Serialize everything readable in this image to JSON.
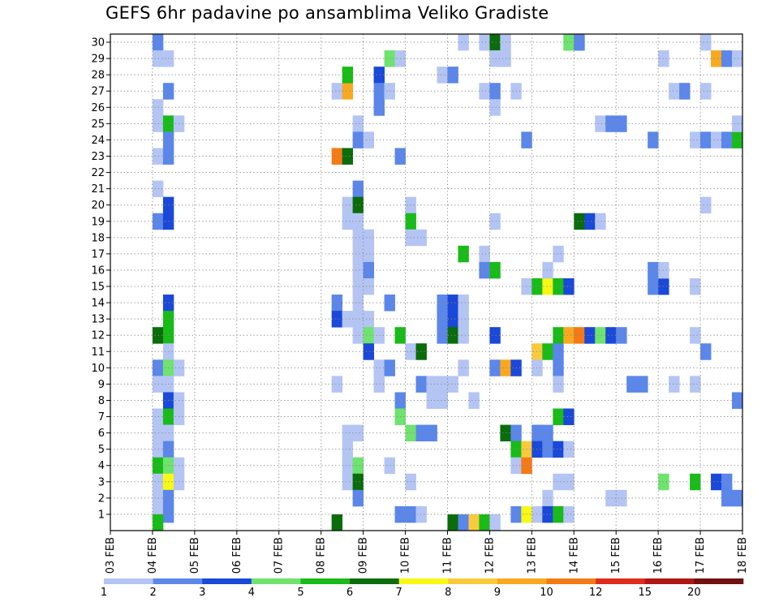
{
  "chart_data": {
    "type": "heatmap",
    "title": "GEFS 6hr padavine po ansamblima Veliko Gradiste",
    "xlabel": "",
    "ylabel": "",
    "x_tick_labels": [
      "03 FEB",
      "04 FEB",
      "05 FEB",
      "06 FEB",
      "07 FEB",
      "08 FEB",
      "09 FEB",
      "10 FEB",
      "11 FEB",
      "12 FEB",
      "13 FEB",
      "14 FEB",
      "15 FEB",
      "16 FEB",
      "17 FEB",
      "18 FEB"
    ],
    "y_tick_labels": [
      "1",
      "2",
      "3",
      "4",
      "5",
      "6",
      "7",
      "8",
      "9",
      "10",
      "11",
      "12",
      "13",
      "14",
      "15",
      "16",
      "17",
      "18",
      "19",
      "20",
      "21",
      "22",
      "23",
      "24",
      "25",
      "26",
      "27",
      "28",
      "29",
      "30"
    ],
    "x_range_days": [
      0,
      15
    ],
    "time_step_hours": 6,
    "grid": true,
    "legend_placement": "bottom",
    "colorbar": {
      "labels": [
        "1",
        "2",
        "3",
        "4",
        "5",
        "6",
        "7",
        "8",
        "9",
        "10",
        "12",
        "15",
        "20"
      ],
      "colors": [
        "#b4c5f4",
        "#5b86ea",
        "#1a48d8",
        "#6ee36e",
        "#18bb18",
        "#0a6c0a",
        "#f8f814",
        "#fbca3c",
        "#f9a820",
        "#f47a16",
        "#e02c1c",
        "#b01616",
        "#701010"
      ]
    },
    "cells": [
      {
        "t": 1.0,
        "m": 30,
        "v": 2
      },
      {
        "t": 1.0,
        "m": 29,
        "v": 1
      },
      {
        "t": 1.25,
        "m": 29,
        "v": 1
      },
      {
        "t": 1.25,
        "m": 27,
        "v": 2
      },
      {
        "t": 1.0,
        "m": 26,
        "v": 1
      },
      {
        "t": 1.0,
        "m": 25,
        "v": 1
      },
      {
        "t": 1.25,
        "m": 25,
        "v": 5
      },
      {
        "t": 1.5,
        "m": 25,
        "v": 1
      },
      {
        "t": 1.25,
        "m": 24,
        "v": 2
      },
      {
        "t": 1.0,
        "m": 23,
        "v": 1
      },
      {
        "t": 1.25,
        "m": 23,
        "v": 2
      },
      {
        "t": 1.0,
        "m": 21,
        "v": 1
      },
      {
        "t": 1.25,
        "m": 20,
        "v": 3
      },
      {
        "t": 1.0,
        "m": 19,
        "v": 2
      },
      {
        "t": 1.25,
        "m": 19,
        "v": 3
      },
      {
        "t": 1.25,
        "m": 14,
        "v": 3
      },
      {
        "t": 1.25,
        "m": 13,
        "v": 5
      },
      {
        "t": 1.0,
        "m": 12,
        "v": 6
      },
      {
        "t": 1.25,
        "m": 12,
        "v": 5
      },
      {
        "t": 1.25,
        "m": 11,
        "v": 1
      },
      {
        "t": 1.0,
        "m": 10,
        "v": 2
      },
      {
        "t": 1.25,
        "m": 10,
        "v": 4
      },
      {
        "t": 1.5,
        "m": 10,
        "v": 1
      },
      {
        "t": 1.0,
        "m": 9,
        "v": 1
      },
      {
        "t": 1.25,
        "m": 9,
        "v": 1
      },
      {
        "t": 1.25,
        "m": 8,
        "v": 3
      },
      {
        "t": 1.5,
        "m": 8,
        "v": 1
      },
      {
        "t": 1.0,
        "m": 7,
        "v": 1
      },
      {
        "t": 1.25,
        "m": 7,
        "v": 5
      },
      {
        "t": 1.5,
        "m": 7,
        "v": 1
      },
      {
        "t": 1.0,
        "m": 6,
        "v": 1
      },
      {
        "t": 1.25,
        "m": 6,
        "v": 1
      },
      {
        "t": 1.0,
        "m": 5,
        "v": 1
      },
      {
        "t": 1.25,
        "m": 5,
        "v": 2
      },
      {
        "t": 1.0,
        "m": 4,
        "v": 5
      },
      {
        "t": 1.25,
        "m": 4,
        "v": 4
      },
      {
        "t": 1.5,
        "m": 4,
        "v": 1
      },
      {
        "t": 1.0,
        "m": 3,
        "v": 1
      },
      {
        "t": 1.25,
        "m": 3,
        "v": 7
      },
      {
        "t": 1.5,
        "m": 3,
        "v": 1
      },
      {
        "t": 1.0,
        "m": 2,
        "v": 1
      },
      {
        "t": 1.25,
        "m": 2,
        "v": 2
      },
      {
        "t": 1.0,
        "m": 1,
        "v": 1
      },
      {
        "t": 1.25,
        "m": 1,
        "v": 2
      },
      {
        "t": 1.0,
        "m": 0.5,
        "v": 5
      },
      {
        "t": 5.25,
        "m": 27,
        "v": 1
      },
      {
        "t": 5.5,
        "m": 27,
        "v": 9
      },
      {
        "t": 5.5,
        "m": 28,
        "v": 5
      },
      {
        "t": 5.25,
        "m": 23,
        "v": 10
      },
      {
        "t": 5.5,
        "m": 23,
        "v": 6
      },
      {
        "t": 5.75,
        "m": 25,
        "v": 1
      },
      {
        "t": 5.75,
        "m": 24,
        "v": 2
      },
      {
        "t": 6.0,
        "m": 24,
        "v": 1
      },
      {
        "t": 5.75,
        "m": 21,
        "v": 2
      },
      {
        "t": 5.5,
        "m": 20,
        "v": 1
      },
      {
        "t": 5.75,
        "m": 20,
        "v": 6
      },
      {
        "t": 5.5,
        "m": 19,
        "v": 1
      },
      {
        "t": 5.75,
        "m": 19,
        "v": 1
      },
      {
        "t": 5.75,
        "m": 18,
        "v": 1
      },
      {
        "t": 6.0,
        "m": 18,
        "v": 1
      },
      {
        "t": 5.75,
        "m": 17,
        "v": 1
      },
      {
        "t": 6.0,
        "m": 17,
        "v": 1
      },
      {
        "t": 5.75,
        "m": 16,
        "v": 1
      },
      {
        "t": 6.0,
        "m": 16,
        "v": 2
      },
      {
        "t": 5.75,
        "m": 15,
        "v": 1
      },
      {
        "t": 6.0,
        "m": 15,
        "v": 1
      },
      {
        "t": 5.25,
        "m": 14,
        "v": 2
      },
      {
        "t": 5.75,
        "m": 14,
        "v": 1
      },
      {
        "t": 5.25,
        "m": 13,
        "v": 3
      },
      {
        "t": 5.5,
        "m": 13,
        "v": 1
      },
      {
        "t": 5.75,
        "m": 13,
        "v": 1
      },
      {
        "t": 6.0,
        "m": 13,
        "v": 1
      },
      {
        "t": 5.75,
        "m": 12,
        "v": 1
      },
      {
        "t": 6.0,
        "m": 12,
        "v": 4
      },
      {
        "t": 6.25,
        "m": 12,
        "v": 1
      },
      {
        "t": 6.0,
        "m": 11,
        "v": 3
      },
      {
        "t": 5.25,
        "m": 9,
        "v": 1
      },
      {
        "t": 5.5,
        "m": 6,
        "v": 1
      },
      {
        "t": 5.75,
        "m": 6,
        "v": 1
      },
      {
        "t": 5.5,
        "m": 5,
        "v": 1
      },
      {
        "t": 5.5,
        "m": 4,
        "v": 1
      },
      {
        "t": 5.75,
        "m": 4,
        "v": 4
      },
      {
        "t": 5.5,
        "m": 3,
        "v": 1
      },
      {
        "t": 5.75,
        "m": 3,
        "v": 6
      },
      {
        "t": 5.75,
        "m": 2,
        "v": 2
      },
      {
        "t": 5.25,
        "m": 0.5,
        "v": 6
      },
      {
        "t": 6.25,
        "m": 28,
        "v": 3
      },
      {
        "t": 6.25,
        "m": 27,
        "v": 2
      },
      {
        "t": 6.25,
        "m": 26,
        "v": 2
      },
      {
        "t": 6.25,
        "m": 10,
        "v": 1
      },
      {
        "t": 6.5,
        "m": 10,
        "v": 2
      },
      {
        "t": 6.25,
        "m": 9,
        "v": 1
      },
      {
        "t": 6.5,
        "m": 14,
        "v": 2
      },
      {
        "t": 6.5,
        "m": 4,
        "v": 1
      },
      {
        "t": 6.5,
        "m": 27,
        "v": 1
      },
      {
        "t": 6.5,
        "m": 29,
        "v": 4
      },
      {
        "t": 6.75,
        "m": 29,
        "v": 1
      },
      {
        "t": 6.75,
        "m": 23,
        "v": 2
      },
      {
        "t": 6.75,
        "m": 12,
        "v": 5
      },
      {
        "t": 6.75,
        "m": 8,
        "v": 2
      },
      {
        "t": 6.75,
        "m": 7,
        "v": 4
      },
      {
        "t": 6.75,
        "m": 1,
        "v": 2
      },
      {
        "t": 7.0,
        "m": 1,
        "v": 2
      },
      {
        "t": 7.25,
        "m": 1,
        "v": 1
      },
      {
        "t": 7.0,
        "m": 20,
        "v": 1
      },
      {
        "t": 7.0,
        "m": 19,
        "v": 5
      },
      {
        "t": 7.0,
        "m": 18,
        "v": 1
      },
      {
        "t": 7.25,
        "m": 18,
        "v": 1
      },
      {
        "t": 7.0,
        "m": 11,
        "v": 1
      },
      {
        "t": 7.25,
        "m": 11,
        "v": 6
      },
      {
        "t": 7.0,
        "m": 6,
        "v": 4
      },
      {
        "t": 7.25,
        "m": 6,
        "v": 2
      },
      {
        "t": 7.5,
        "m": 6,
        "v": 2
      },
      {
        "t": 7.0,
        "m": 3,
        "v": 1
      },
      {
        "t": 7.25,
        "m": 9,
        "v": 2
      },
      {
        "t": 7.5,
        "m": 9,
        "v": 1
      },
      {
        "t": 7.75,
        "m": 9,
        "v": 1
      },
      {
        "t": 8.0,
        "m": 9,
        "v": 1
      },
      {
        "t": 7.5,
        "m": 8,
        "v": 1
      },
      {
        "t": 7.75,
        "m": 8,
        "v": 1
      },
      {
        "t": 7.75,
        "m": 28,
        "v": 1
      },
      {
        "t": 8.0,
        "m": 28,
        "v": 2
      },
      {
        "t": 7.75,
        "m": 14,
        "v": 2
      },
      {
        "t": 8.0,
        "m": 14,
        "v": 3
      },
      {
        "t": 8.25,
        "m": 14,
        "v": 1
      },
      {
        "t": 7.75,
        "m": 13,
        "v": 2
      },
      {
        "t": 8.0,
        "m": 13,
        "v": 3
      },
      {
        "t": 8.25,
        "m": 13,
        "v": 1
      },
      {
        "t": 7.75,
        "m": 12,
        "v": 2
      },
      {
        "t": 8.0,
        "m": 12,
        "v": 6
      },
      {
        "t": 8.25,
        "m": 12,
        "v": 1
      },
      {
        "t": 8.25,
        "m": 30,
        "v": 1
      },
      {
        "t": 8.25,
        "m": 10,
        "v": 1
      },
      {
        "t": 8.25,
        "m": 17,
        "v": 5
      },
      {
        "t": 8.5,
        "m": 8,
        "v": 1
      },
      {
        "t": 8.0,
        "m": 0.5,
        "v": 6
      },
      {
        "t": 8.25,
        "m": 0.5,
        "v": 2
      },
      {
        "t": 8.5,
        "m": 0.5,
        "v": 8
      },
      {
        "t": 8.75,
        "m": 0.5,
        "v": 5
      },
      {
        "t": 9.0,
        "m": 0.5,
        "v": 1
      },
      {
        "t": 8.75,
        "m": 30,
        "v": 1
      },
      {
        "t": 9.0,
        "m": 30,
        "v": 6
      },
      {
        "t": 9.25,
        "m": 30,
        "v": 1
      },
      {
        "t": 9.0,
        "m": 29,
        "v": 1
      },
      {
        "t": 9.25,
        "m": 29,
        "v": 1
      },
      {
        "t": 8.75,
        "m": 27,
        "v": 1
      },
      {
        "t": 9.0,
        "m": 27,
        "v": 2
      },
      {
        "t": 9.5,
        "m": 27,
        "v": 1
      },
      {
        "t": 9.0,
        "m": 26,
        "v": 1
      },
      {
        "t": 9.0,
        "m": 19,
        "v": 1
      },
      {
        "t": 8.75,
        "m": 17,
        "v": 1
      },
      {
        "t": 8.75,
        "m": 16,
        "v": 2
      },
      {
        "t": 9.0,
        "m": 16,
        "v": 5
      },
      {
        "t": 9.0,
        "m": 12,
        "v": 3
      },
      {
        "t": 9.0,
        "m": 10,
        "v": 2
      },
      {
        "t": 9.25,
        "m": 10,
        "v": 9
      },
      {
        "t": 9.5,
        "m": 10,
        "v": 3
      },
      {
        "t": 9.25,
        "m": 6,
        "v": 6
      },
      {
        "t": 9.5,
        "m": 6,
        "v": 2
      },
      {
        "t": 9.5,
        "m": 5,
        "v": 5
      },
      {
        "t": 9.75,
        "m": 5,
        "v": 8
      },
      {
        "t": 9.5,
        "m": 4,
        "v": 1
      },
      {
        "t": 9.75,
        "m": 4,
        "v": 10
      },
      {
        "t": 9.5,
        "m": 1,
        "v": 2
      },
      {
        "t": 9.75,
        "m": 1,
        "v": 7
      },
      {
        "t": 10.0,
        "m": 1,
        "v": 1
      },
      {
        "t": 9.75,
        "m": 24,
        "v": 2
      },
      {
        "t": 9.75,
        "m": 15,
        "v": 1
      },
      {
        "t": 10.0,
        "m": 15,
        "v": 5
      },
      {
        "t": 10.25,
        "m": 15,
        "v": 7
      },
      {
        "t": 10.5,
        "m": 15,
        "v": 5
      },
      {
        "t": 10.75,
        "m": 15,
        "v": 3
      },
      {
        "t": 10.25,
        "m": 16,
        "v": 1
      },
      {
        "t": 10.0,
        "m": 11,
        "v": 8
      },
      {
        "t": 10.25,
        "m": 11,
        "v": 5
      },
      {
        "t": 10.0,
        "m": 10,
        "v": 1
      },
      {
        "t": 10.0,
        "m": 6,
        "v": 2
      },
      {
        "t": 10.25,
        "m": 6,
        "v": 2
      },
      {
        "t": 10.0,
        "m": 5,
        "v": 3
      },
      {
        "t": 10.25,
        "m": 5,
        "v": 2
      },
      {
        "t": 10.5,
        "m": 5,
        "v": 3
      },
      {
        "t": 10.75,
        "m": 5,
        "v": 1
      },
      {
        "t": 10.25,
        "m": 2,
        "v": 1
      },
      {
        "t": 10.25,
        "m": 1,
        "v": 3
      },
      {
        "t": 10.5,
        "m": 1,
        "v": 5
      },
      {
        "t": 10.75,
        "m": 1,
        "v": 1
      },
      {
        "t": 10.5,
        "m": 12,
        "v": 5
      },
      {
        "t": 10.75,
        "m": 12,
        "v": 9
      },
      {
        "t": 11.0,
        "m": 12,
        "v": 10
      },
      {
        "t": 11.25,
        "m": 12,
        "v": 3
      },
      {
        "t": 11.5,
        "m": 12,
        "v": 4
      },
      {
        "t": 11.75,
        "m": 12,
        "v": 3
      },
      {
        "t": 12.0,
        "m": 12,
        "v": 2
      },
      {
        "t": 10.5,
        "m": 11,
        "v": 2
      },
      {
        "t": 10.5,
        "m": 10,
        "v": 2
      },
      {
        "t": 10.5,
        "m": 9,
        "v": 1
      },
      {
        "t": 10.5,
        "m": 7,
        "v": 5
      },
      {
        "t": 10.75,
        "m": 7,
        "v": 3
      },
      {
        "t": 10.5,
        "m": 17,
        "v": 1
      },
      {
        "t": 10.5,
        "m": 3,
        "v": 1
      },
      {
        "t": 10.75,
        "m": 3,
        "v": 1
      },
      {
        "t": 10.75,
        "m": 30,
        "v": 4
      },
      {
        "t": 11.0,
        "m": 30,
        "v": 2
      },
      {
        "t": 11.0,
        "m": 19,
        "v": 6
      },
      {
        "t": 11.25,
        "m": 19,
        "v": 3
      },
      {
        "t": 11.5,
        "m": 19,
        "v": 1
      },
      {
        "t": 11.5,
        "m": 25,
        "v": 1
      },
      {
        "t": 11.75,
        "m": 25,
        "v": 2
      },
      {
        "t": 12.0,
        "m": 25,
        "v": 2
      },
      {
        "t": 11.75,
        "m": 2,
        "v": 1
      },
      {
        "t": 12.0,
        "m": 2,
        "v": 1
      },
      {
        "t": 12.25,
        "m": 9,
        "v": 2
      },
      {
        "t": 12.5,
        "m": 9,
        "v": 2
      },
      {
        "t": 12.75,
        "m": 16,
        "v": 2
      },
      {
        "t": 12.75,
        "m": 15,
        "v": 2
      },
      {
        "t": 13.0,
        "m": 15,
        "v": 3
      },
      {
        "t": 13.0,
        "m": 16,
        "v": 1
      },
      {
        "t": 13.0,
        "m": 3,
        "v": 4
      },
      {
        "t": 13.0,
        "m": 29,
        "v": 1
      },
      {
        "t": 13.25,
        "m": 27,
        "v": 1
      },
      {
        "t": 13.5,
        "m": 27,
        "v": 2
      },
      {
        "t": 13.75,
        "m": 12,
        "v": 1
      },
      {
        "t": 13.25,
        "m": 9,
        "v": 1
      },
      {
        "t": 13.75,
        "m": 9,
        "v": 1
      },
      {
        "t": 13.75,
        "m": 15,
        "v": 1
      },
      {
        "t": 13.75,
        "m": 3,
        "v": 5
      },
      {
        "t": 14.0,
        "m": 30,
        "v": 1
      },
      {
        "t": 14.0,
        "m": 27,
        "v": 1
      },
      {
        "t": 14.0,
        "m": 20,
        "v": 1
      },
      {
        "t": 14.0,
        "m": 11,
        "v": 2
      },
      {
        "t": 14.25,
        "m": 29,
        "v": 9
      },
      {
        "t": 14.5,
        "m": 29,
        "v": 2
      },
      {
        "t": 14.75,
        "m": 29,
        "v": 1
      },
      {
        "t": 13.75,
        "m": 24,
        "v": 1
      },
      {
        "t": 14.0,
        "m": 24,
        "v": 2
      },
      {
        "t": 14.25,
        "m": 24,
        "v": 1
      },
      {
        "t": 14.5,
        "m": 24,
        "v": 2
      },
      {
        "t": 14.75,
        "m": 24,
        "v": 5
      },
      {
        "t": 14.75,
        "m": 25,
        "v": 1
      },
      {
        "t": 14.25,
        "m": 3,
        "v": 3
      },
      {
        "t": 14.5,
        "m": 3,
        "v": 2
      },
      {
        "t": 14.5,
        "m": 2,
        "v": 2
      },
      {
        "t": 14.75,
        "m": 2,
        "v": 2
      },
      {
        "t": 14.75,
        "m": 8,
        "v": 2
      },
      {
        "t": 12.75,
        "m": 24,
        "v": 2
      }
    ]
  }
}
